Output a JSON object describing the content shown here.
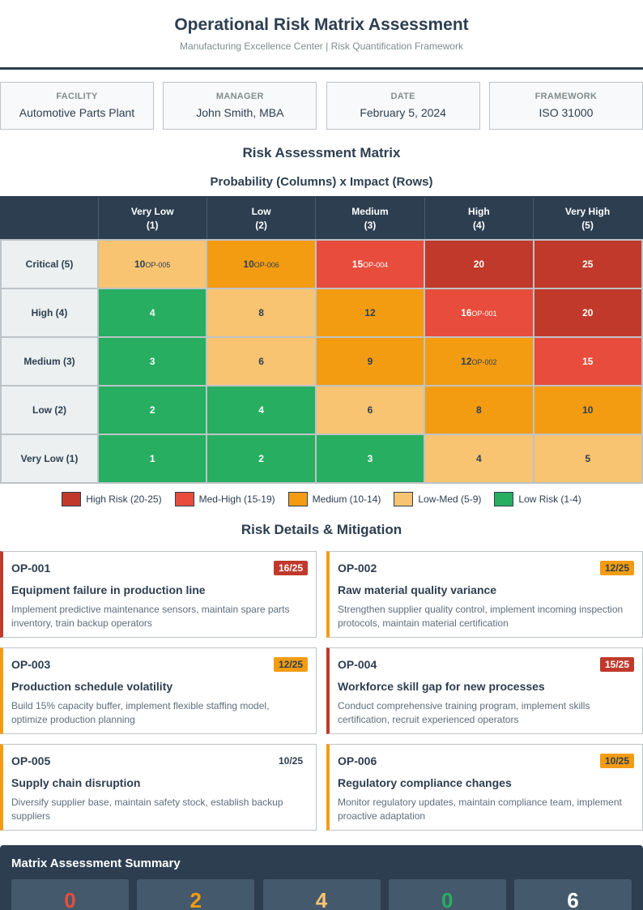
{
  "header": {
    "title": "Operational Risk Matrix Assessment",
    "subtitle": "Manufacturing Excellence Center | Risk Quantification Framework"
  },
  "info": [
    {
      "label": "FACILITY",
      "value": "Automotive Parts Plant"
    },
    {
      "label": "MANAGER",
      "value": "John Smith, MBA"
    },
    {
      "label": "DATE",
      "value": "February 5, 2024"
    },
    {
      "label": "FRAMEWORK",
      "value": "ISO 31000"
    }
  ],
  "matrix": {
    "title": "Risk Assessment Matrix",
    "subtitle": "Probability (Columns) x Impact (Rows)",
    "columns": [
      {
        "name": "Very Low",
        "num": "(1)"
      },
      {
        "name": "Low",
        "num": "(2)"
      },
      {
        "name": "Medium",
        "num": "(3)"
      },
      {
        "name": "High",
        "num": "(4)"
      },
      {
        "name": "Very High",
        "num": "(5)"
      }
    ],
    "rows": [
      {
        "label": "Critical (5)",
        "cells": [
          {
            "v": "10",
            "op": "OP-005",
            "c": "lm"
          },
          {
            "v": "10",
            "op": "OP-006",
            "c": "md"
          },
          {
            "v": "15",
            "op": "OP-004",
            "c": "mh"
          },
          {
            "v": "20",
            "op": "",
            "c": "hi"
          },
          {
            "v": "25",
            "op": "",
            "c": "hi"
          }
        ]
      },
      {
        "label": "High (4)",
        "cells": [
          {
            "v": "4",
            "op": "",
            "c": "lo"
          },
          {
            "v": "8",
            "op": "",
            "c": "lm"
          },
          {
            "v": "12",
            "op": "",
            "c": "md"
          },
          {
            "v": "16",
            "op": "OP-001",
            "c": "mh"
          },
          {
            "v": "20",
            "op": "",
            "c": "hi"
          }
        ]
      },
      {
        "label": "Medium (3)",
        "cells": [
          {
            "v": "3",
            "op": "",
            "c": "lo"
          },
          {
            "v": "6",
            "op": "",
            "c": "lm"
          },
          {
            "v": "9",
            "op": "",
            "c": "md"
          },
          {
            "v": "12",
            "op": "OP-002",
            "c": "md"
          },
          {
            "v": "15",
            "op": "",
            "c": "mh"
          }
        ]
      },
      {
        "label": "Low (2)",
        "cells": [
          {
            "v": "2",
            "op": "",
            "c": "lo"
          },
          {
            "v": "4",
            "op": "",
            "c": "lo"
          },
          {
            "v": "6",
            "op": "",
            "c": "lm"
          },
          {
            "v": "8",
            "op": "",
            "c": "md"
          },
          {
            "v": "10",
            "op": "",
            "c": "md"
          }
        ]
      },
      {
        "label": "Very Low (1)",
        "cells": [
          {
            "v": "1",
            "op": "",
            "c": "lo"
          },
          {
            "v": "2",
            "op": "",
            "c": "lo"
          },
          {
            "v": "3",
            "op": "",
            "c": "lo"
          },
          {
            "v": "4",
            "op": "",
            "c": "lm"
          },
          {
            "v": "5",
            "op": "",
            "c": "lm"
          }
        ]
      }
    ]
  },
  "legend": [
    {
      "label": "High Risk (20-25)",
      "color": "#c0392b"
    },
    {
      "label": "Med-High (15-19)",
      "color": "#e74c3c"
    },
    {
      "label": "Medium (10-14)",
      "color": "#f39c12"
    },
    {
      "label": "Low-Med (5-9)",
      "color": "#f8c471"
    },
    {
      "label": "Low Risk (1-4)",
      "color": "#27ae60"
    }
  ],
  "details": {
    "title": "Risk Details & Mitigation",
    "risks": [
      {
        "id": "OP-001",
        "score": "16/25",
        "level": "red",
        "title": "Equipment failure in production line",
        "desc": "Implement predictive maintenance sensors, maintain spare parts inventory, train backup operators"
      },
      {
        "id": "OP-002",
        "score": "12/25",
        "level": "orange",
        "title": "Raw material quality variance",
        "desc": "Strengthen supplier quality control, implement incoming inspection protocols, maintain material certification"
      },
      {
        "id": "OP-003",
        "score": "12/25",
        "level": "orange",
        "title": "Production schedule volatility",
        "desc": "Build 15% capacity buffer, implement flexible staffing model, optimize production planning"
      },
      {
        "id": "OP-004",
        "score": "15/25",
        "level": "red",
        "title": "Workforce skill gap for new processes",
        "desc": "Conduct comprehensive training program, implement skills certification, recruit experienced operators"
      },
      {
        "id": "OP-005",
        "score": "10/25",
        "level": "none",
        "title": "Supply chain disruption",
        "desc": "Diversify supplier base, maintain safety stock, establish backup suppliers"
      },
      {
        "id": "OP-006",
        "score": "10/25",
        "level": "orange",
        "title": "Regulatory compliance changes",
        "desc": "Monitor regulatory updates, maintain compliance team, implement proactive adaptation"
      }
    ]
  },
  "summary": {
    "title": "Matrix Assessment Summary",
    "stats": [
      {
        "value": "0",
        "color": "#e74c3c"
      },
      {
        "value": "2",
        "color": "#f39c12"
      },
      {
        "value": "4",
        "color": "#f8c471"
      },
      {
        "value": "0",
        "color": "#27ae60"
      },
      {
        "value": "6",
        "color": "#ffffff"
      }
    ]
  }
}
